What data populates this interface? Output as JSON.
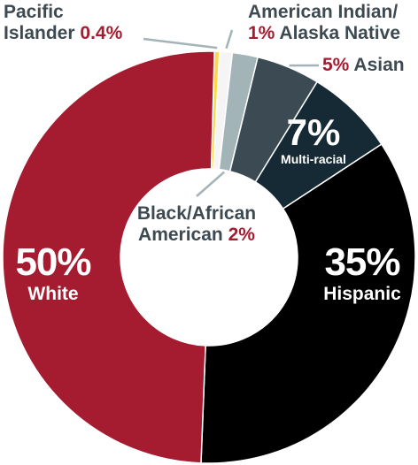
{
  "chart_data": {
    "type": "donut",
    "slices": [
      {
        "name": "Pacific Islander",
        "value": 0.4,
        "value_label": "0.4%",
        "color": "#fcd94a"
      },
      {
        "name": "American Indian/ Alaska Native",
        "value": 1,
        "value_label": "1%",
        "color": "#f5f5f5"
      },
      {
        "name": "Black/African American",
        "value": 2,
        "value_label": "2%",
        "color": "#a3b4b8"
      },
      {
        "name": "Asian",
        "value": 5,
        "value_label": "5%",
        "color": "#3c4b53"
      },
      {
        "name": "Multi-racial",
        "value": 7,
        "value_label": "7%",
        "color": "#162a36"
      },
      {
        "name": "Hispanic",
        "value": 35,
        "value_label": "35%",
        "color": "#000000"
      },
      {
        "name": "White",
        "value": 50,
        "value_label": "50%",
        "color": "#a51c30"
      }
    ]
  },
  "labels": {
    "pacific_line1": "Pacific",
    "pacific_line2": "Islander",
    "pacific_pct": "0.4%",
    "amind_line1": "American Indian/",
    "amind_pct": "1%",
    "amind_line2": "Alaska Native",
    "asian_pct": "5%",
    "asian_name": "Asian",
    "multi_pct": "7%",
    "multi_name": "Multi-racial",
    "black_line1": "Black/African",
    "black_line2": "American",
    "black_pct": "2%",
    "hispanic_pct": "35%",
    "hispanic_name": "Hispanic",
    "white_pct": "50%",
    "white_name": "White"
  }
}
